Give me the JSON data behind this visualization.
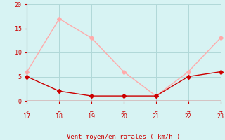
{
  "x": [
    17,
    18,
    19,
    20,
    21,
    22,
    23
  ],
  "wind_avg": [
    5,
    2,
    1,
    1,
    1,
    5,
    6
  ],
  "wind_gust": [
    6,
    17,
    13,
    6,
    1,
    6,
    13
  ],
  "wind_avg_color": "#cc0000",
  "wind_gust_color": "#ffaaaa",
  "background_color": "#d7f3f3",
  "grid_color": "#b0d8d8",
  "spine_left_color": "#777777",
  "axis_bottom_color": "#cc0000",
  "xlabel": "Vent moyen/en rafales ( km/h )",
  "xlabel_color": "#cc0000",
  "tick_color": "#cc0000",
  "xlim": [
    17,
    23
  ],
  "ylim": [
    0,
    20
  ],
  "yticks": [
    0,
    5,
    10,
    15,
    20
  ],
  "xticks": [
    17,
    18,
    19,
    20,
    21,
    22,
    23
  ],
  "markersize": 3,
  "linewidth_avg": 1.0,
  "linewidth_gust": 1.0,
  "arrow_chars": [
    "↙",
    "←",
    "←",
    "←",
    "←",
    "→",
    "→"
  ]
}
